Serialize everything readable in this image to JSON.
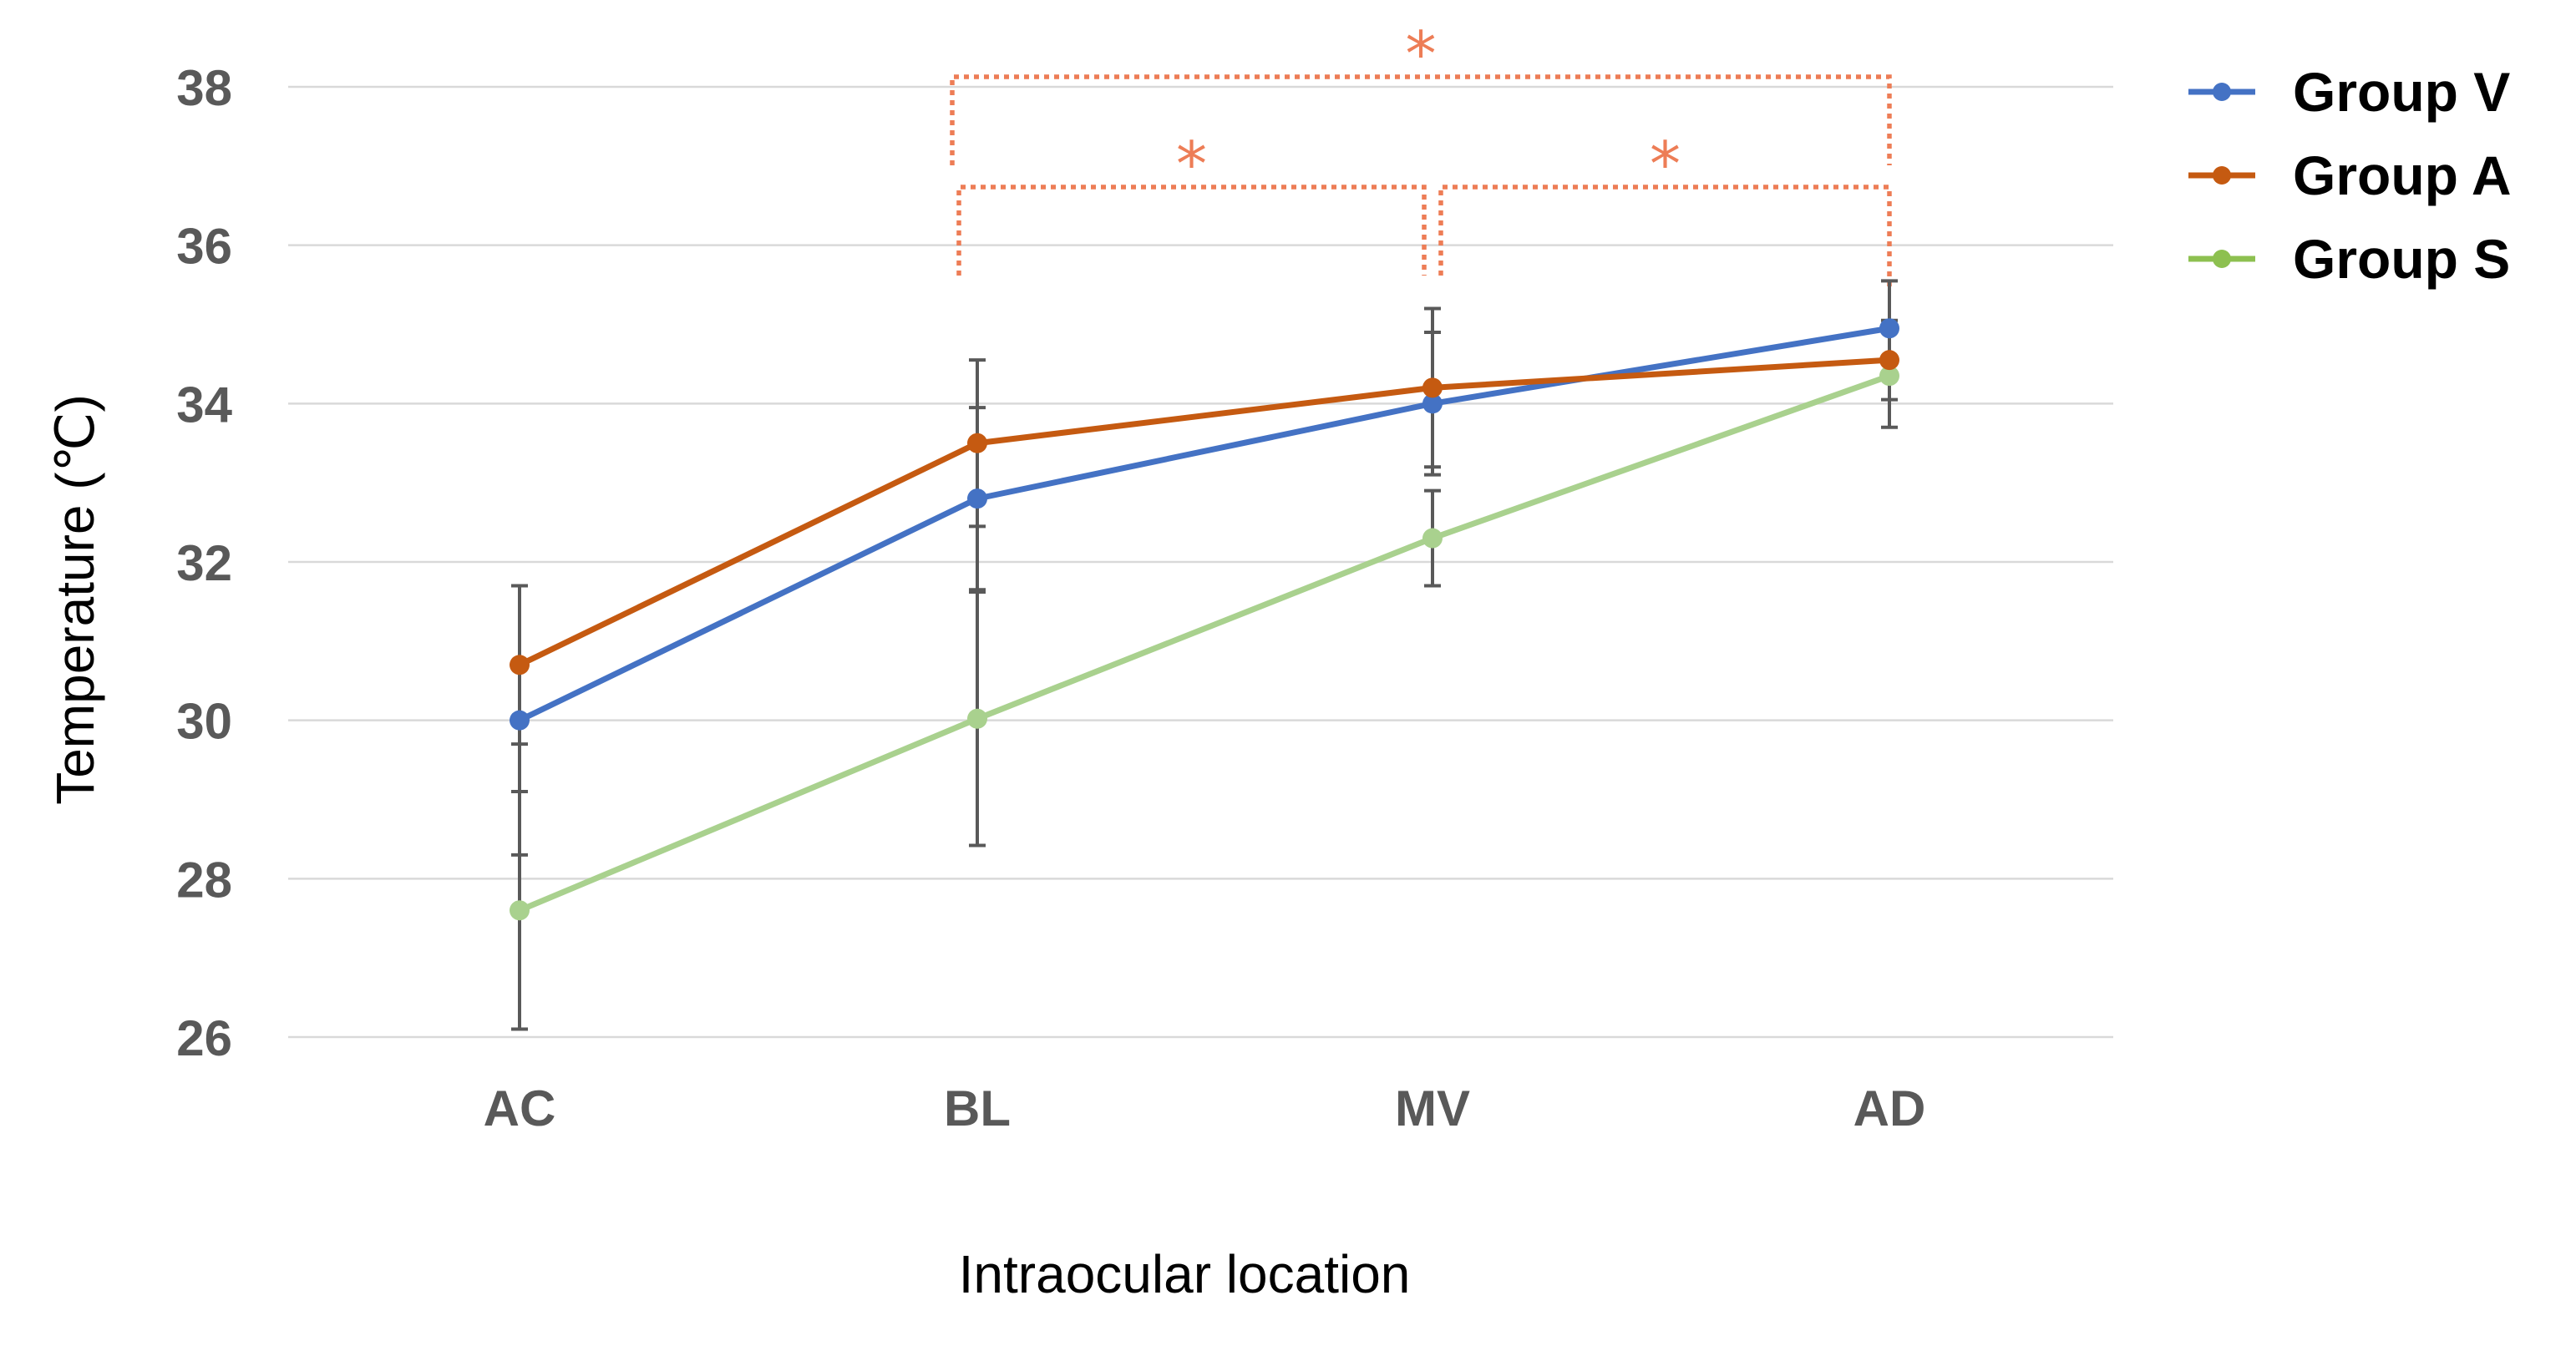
{
  "chart_data": {
    "type": "line",
    "title": "",
    "xlabel": "Intraocular location",
    "ylabel": "Temperature (℃)",
    "categories": [
      "AC",
      "BL",
      "MV",
      "AD"
    ],
    "ylim": [
      26,
      38
    ],
    "yticks": [
      26,
      28,
      30,
      32,
      34,
      36,
      38
    ],
    "grid": true,
    "legend_position": "top-right",
    "series": [
      {
        "name": "Group V",
        "color": "#4472C4",
        "values": [
          30.0,
          32.8,
          34.0,
          34.95
        ],
        "error": [
          1.7,
          1.15,
          0.9,
          0.6
        ]
      },
      {
        "name": "Group A",
        "color": "#C55A11",
        "values": [
          30.7,
          33.5,
          34.2,
          34.55
        ],
        "error": [
          1.0,
          1.05,
          1.0,
          0.5
        ]
      },
      {
        "name": "Group S",
        "color": "#A9D18E",
        "legend_color": "#8DC050",
        "values": [
          27.6,
          30.02,
          32.3,
          34.35
        ],
        "error": [
          1.5,
          1.6,
          0.6,
          0.65
        ]
      }
    ],
    "significance": {
      "color": "#ED7D56",
      "label": "*",
      "brackets": [
        {
          "from": "BL",
          "to": "AD"
        },
        {
          "from": "BL",
          "to": "MV"
        },
        {
          "from": "MV",
          "to": "AD"
        }
      ]
    }
  }
}
